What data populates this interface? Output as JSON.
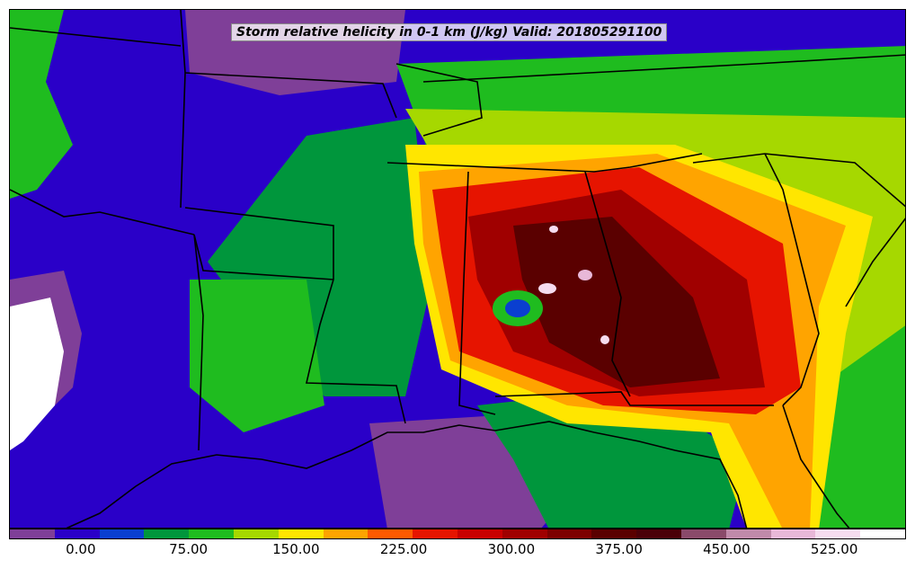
{
  "title": "Storm relative helicity in 0-1 km (J/kg) Valid: 201805291100",
  "colorbar": {
    "colors": [
      "#7f3f98",
      "#2a00c8",
      "#0a3fd0",
      "#00963c",
      "#1fbc1f",
      "#a6d800",
      "#ffe600",
      "#ffa400",
      "#ff5a00",
      "#e61400",
      "#c80000",
      "#a00000",
      "#7d0000",
      "#5a0000",
      "#4a0008",
      "#8a4a6a",
      "#c08aaa",
      "#e8b8d8",
      "#f6dcef",
      "#ffffff"
    ],
    "labels": [
      "0.00",
      "75.00",
      "150.00",
      "225.00",
      "300.00",
      "375.00",
      "450.00",
      "525.00"
    ],
    "min": -50,
    "max": 575
  },
  "legend_colors": {
    "background_land": "#2a00c8",
    "boundary": "#000000"
  }
}
